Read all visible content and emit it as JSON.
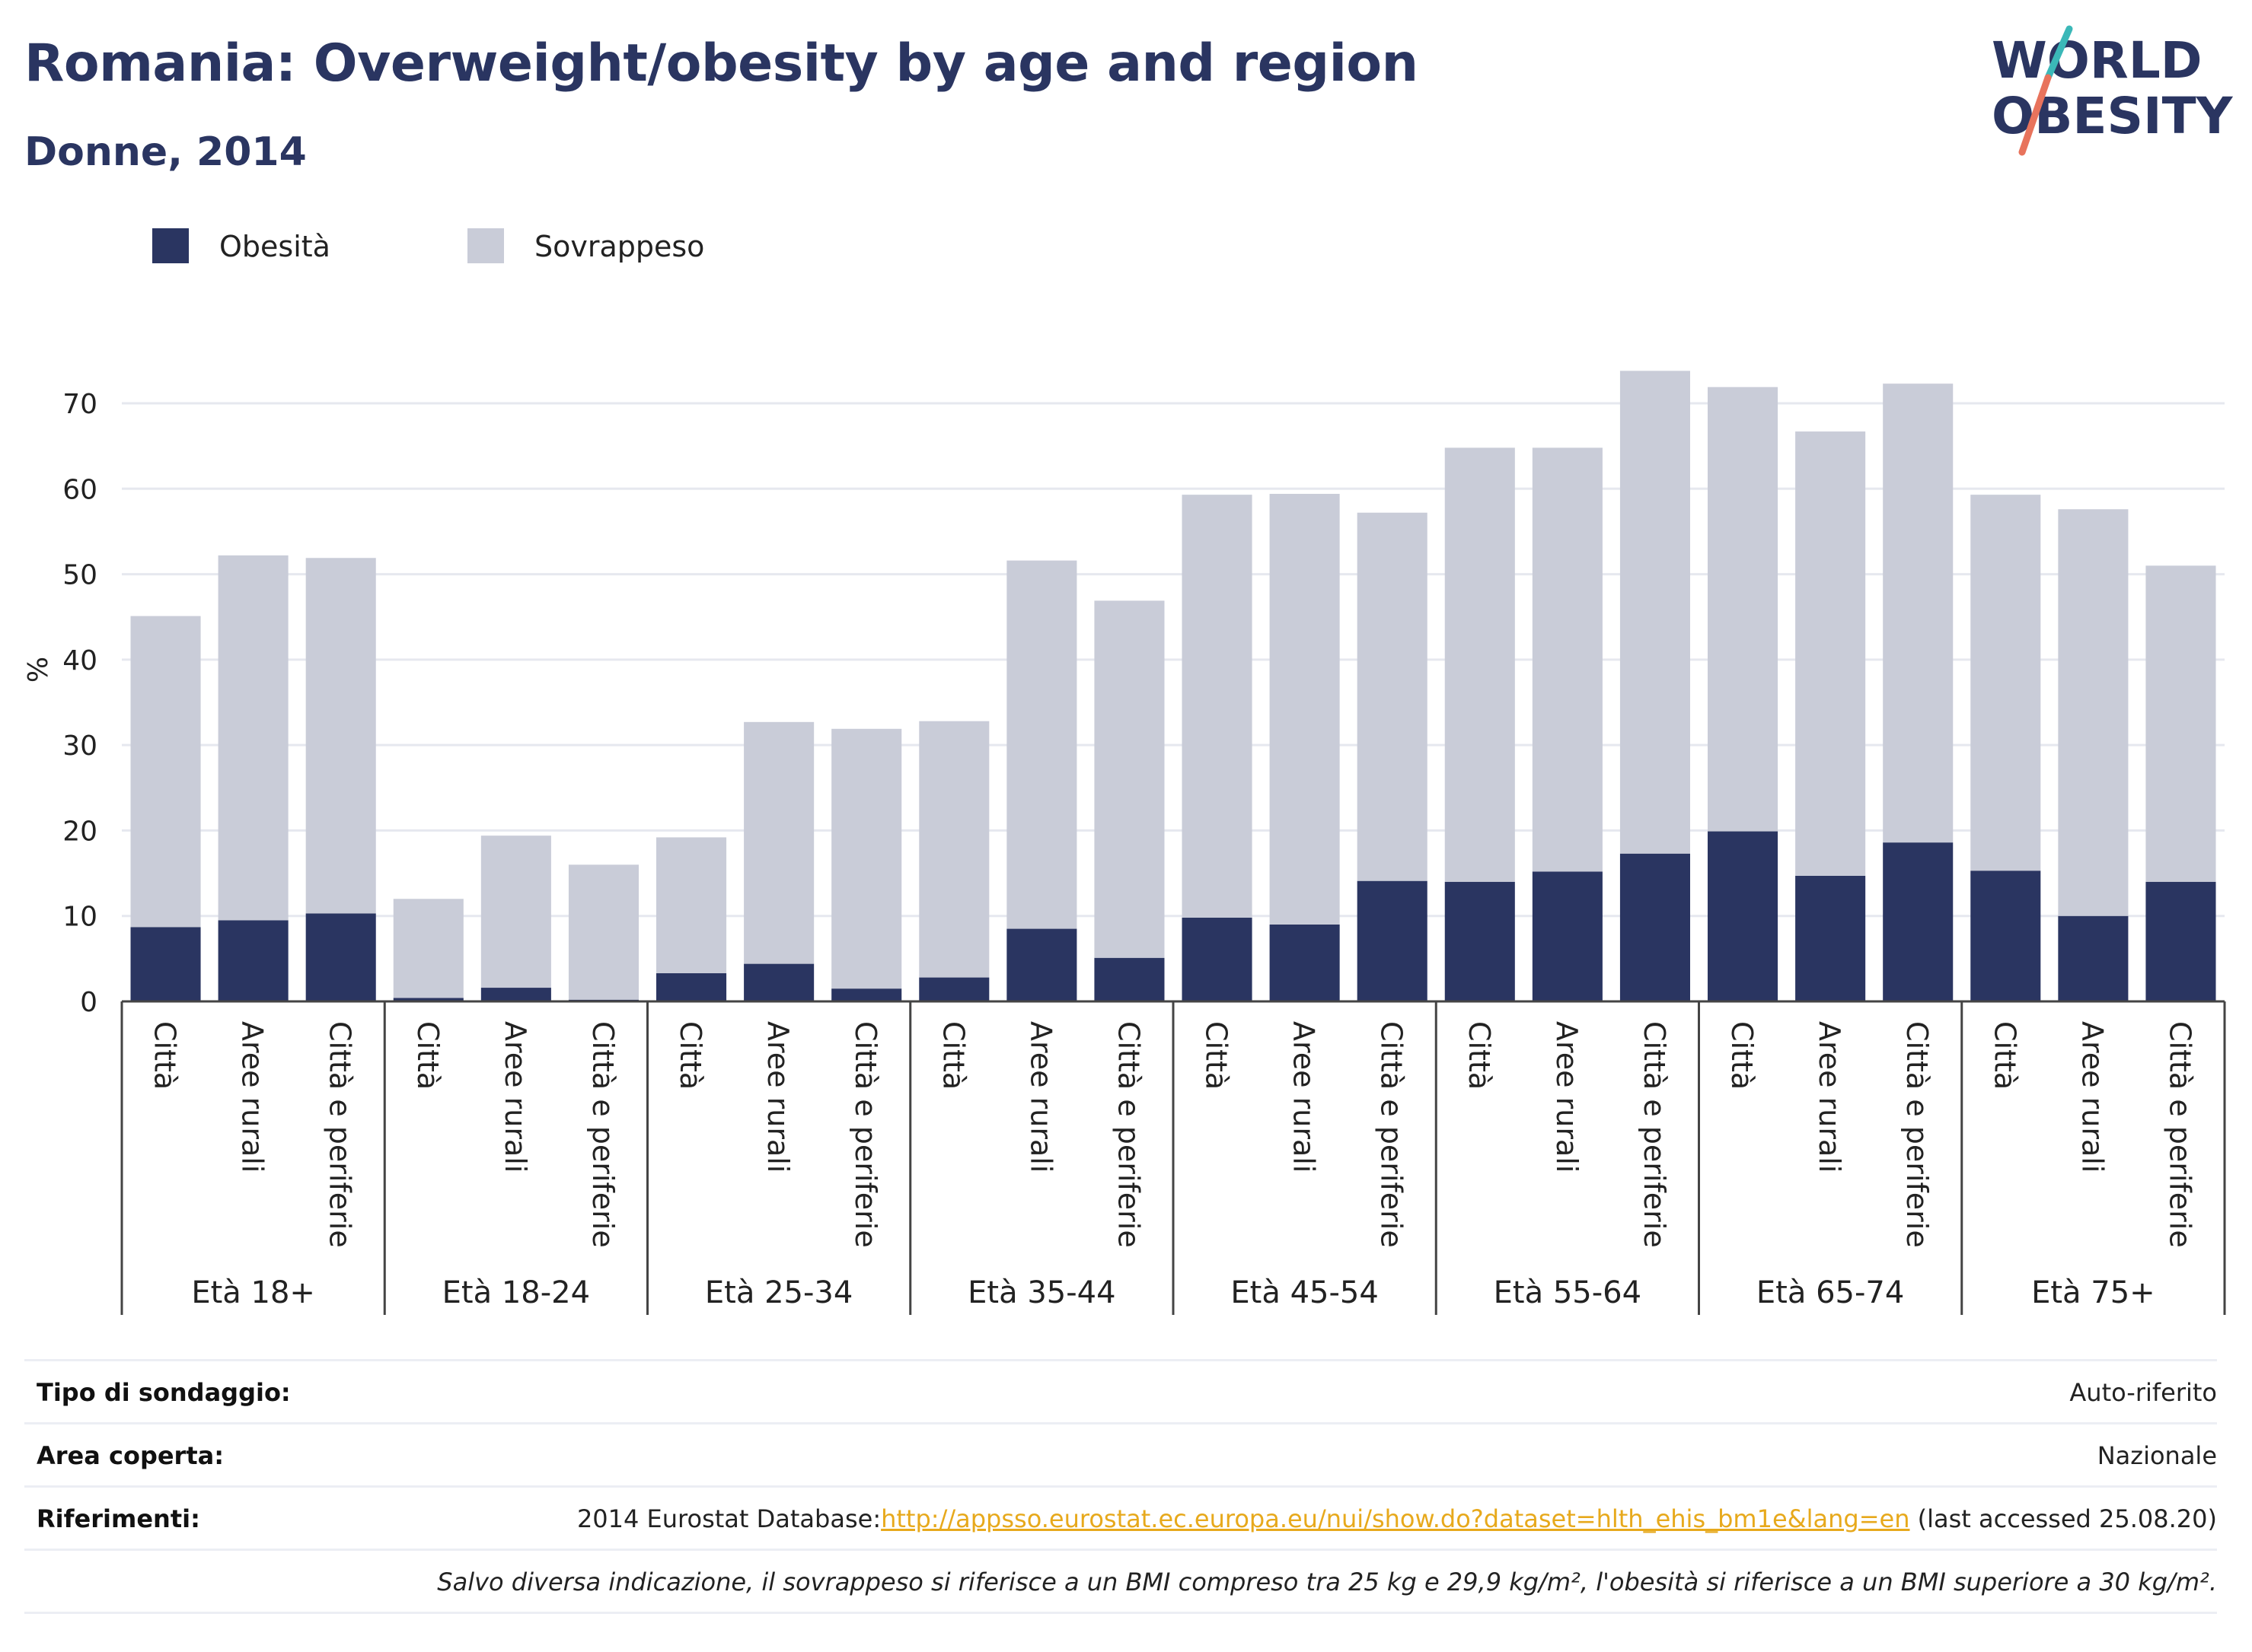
{
  "header": {
    "title": "Romania: Overweight/obesity by age and region",
    "subtitle": "Donne, 2014"
  },
  "logo": {
    "line1": "WORLD",
    "line2": "OBESITY"
  },
  "colors": {
    "obesity": "#2a3561",
    "overweight": "#c9ccd8",
    "title": "#2a3561",
    "link": "#e7a91c"
  },
  "chart_data": {
    "type": "bar",
    "stacked": true,
    "ylabel": "%",
    "xlabel": "",
    "ylim": [
      0,
      76
    ],
    "yticks": [
      0,
      10,
      20,
      30,
      40,
      50,
      60,
      70
    ],
    "grid": true,
    "legend_position": "top-left",
    "groups": [
      "Età 18+",
      "Età 18-24",
      "Età 25-34",
      "Età 35-44",
      "Età 45-54",
      "Età 55-64",
      "Età 65-74",
      "Età 75+"
    ],
    "subcategories": [
      "Città",
      "Aree rurali",
      "Città e periferie"
    ],
    "series": [
      {
        "name": "Obesità",
        "values": [
          8.7,
          9.5,
          10.3,
          0.4,
          1.6,
          0.2,
          3.3,
          4.4,
          1.5,
          2.8,
          8.5,
          5.1,
          9.8,
          9.0,
          14.1,
          14.0,
          15.2,
          17.3,
          19.9,
          14.7,
          18.6,
          15.3,
          10.0,
          14.0
        ]
      },
      {
        "name": "Sovrappeso",
        "values": [
          36.4,
          42.7,
          41.6,
          11.6,
          17.8,
          15.8,
          15.9,
          28.3,
          30.4,
          30.0,
          43.1,
          41.8,
          49.5,
          50.4,
          43.1,
          50.8,
          49.6,
          56.5,
          52.0,
          52.0,
          53.7,
          44.0,
          47.6,
          37.0
        ]
      }
    ]
  },
  "footer": {
    "rows": [
      {
        "label": "Tipo di sondaggio:",
        "value": "Auto-riferito"
      },
      {
        "label": "Area coperta:",
        "value": "Nazionale"
      }
    ],
    "references_label": "Riferimenti:",
    "references_prefix": "2014 Eurostat Database:",
    "references_link": "http://appsso.eurostat.ec.europa.eu/nui/show.do?dataset=hlth_ehis_bm1e&lang=en",
    "references_suffix": " (last accessed 25.08.20)",
    "note": "Salvo diversa indicazione, il sovrappeso si riferisce a un BMI compreso tra 25 kg e 29,9 kg/m², l'obesità si riferisce a un BMI superiore a 30 kg/m²."
  }
}
